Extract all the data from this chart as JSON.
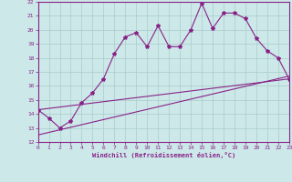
{
  "xlabel": "Windchill (Refroidissement éolien,°C)",
  "xlim": [
    0,
    23
  ],
  "ylim": [
    12,
    22
  ],
  "xticks": [
    0,
    1,
    2,
    3,
    4,
    5,
    6,
    7,
    8,
    9,
    10,
    11,
    12,
    13,
    14,
    15,
    16,
    17,
    18,
    19,
    20,
    21,
    22,
    23
  ],
  "yticks": [
    12,
    13,
    14,
    15,
    16,
    17,
    18,
    19,
    20,
    21,
    22
  ],
  "bg_color": "#cce8e8",
  "grid_color": "#aacccc",
  "line_color": "#882288",
  "line1_x": [
    0,
    1,
    2,
    3,
    4,
    5,
    6,
    7,
    8,
    9,
    10,
    11,
    12,
    13,
    14,
    15,
    16,
    17,
    18,
    19,
    20,
    21,
    22,
    23
  ],
  "line1_y": [
    14.3,
    13.7,
    13.0,
    13.5,
    14.8,
    15.5,
    16.5,
    18.3,
    19.5,
    19.8,
    18.8,
    20.3,
    18.8,
    18.8,
    20.0,
    21.9,
    20.1,
    21.2,
    21.2,
    20.8,
    19.4,
    18.5,
    18.0,
    16.5
  ],
  "line2_x": [
    0,
    23
  ],
  "line2_y": [
    14.3,
    16.5
  ],
  "line3_x": [
    0,
    23
  ],
  "line3_y": [
    12.5,
    16.7
  ]
}
